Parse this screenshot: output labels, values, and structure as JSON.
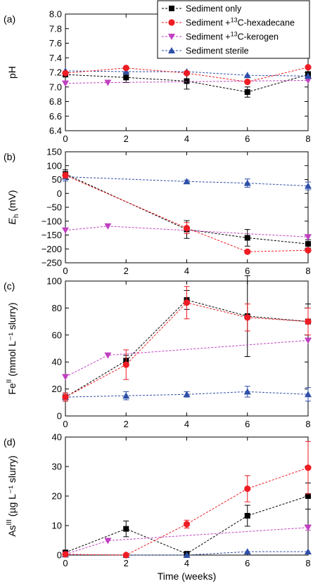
{
  "legend": {
    "entries": [
      {
        "pre": "Sediment only",
        "sup": "",
        "post": "",
        "series": "sediment_only"
      },
      {
        "pre": "Sediment +",
        "sup": "13",
        "post": "C-hexadecane",
        "series": "hexadecane"
      },
      {
        "pre": "Sediment +",
        "sup": "13",
        "post": "C-kerogen",
        "series": "kerogen"
      },
      {
        "pre": "Sediment sterile",
        "sup": "",
        "post": "",
        "series": "sterile"
      }
    ],
    "placement": "top-right"
  },
  "styles": {
    "sediment_only": {
      "color": "#000000",
      "marker": "square"
    },
    "hexadecane": {
      "color": "#ee1c24",
      "marker": "circle"
    },
    "kerogen": {
      "color": "#c040c0",
      "marker": "triangle-down"
    },
    "sterile": {
      "color": "#2e4fa8",
      "marker": "triangle-up"
    }
  },
  "xlabel": "Time (weeks)",
  "chart_data": [
    {
      "type": "line",
      "panel": "(a)",
      "ylabel": {
        "main": "pH",
        "sub": "",
        "sup": "",
        "rest": ""
      },
      "xlim": [
        0,
        8
      ],
      "ylim": [
        6.4,
        8.0
      ],
      "xticks": [
        "0",
        "2",
        "4",
        "6",
        "8"
      ],
      "yticks": [
        "6.4",
        "6.6",
        "6.8",
        "7.0",
        "7.2",
        "7.4",
        "7.6",
        "7.8",
        "8.0"
      ],
      "series": [
        {
          "key": "sediment_only",
          "x": [
            0,
            2,
            4,
            6,
            8
          ],
          "y": [
            7.17,
            7.13,
            7.08,
            6.93,
            7.17
          ],
          "err": [
            0.03,
            0.07,
            0.11,
            0.07,
            0.04
          ]
        },
        {
          "key": "hexadecane",
          "x": [
            0,
            2,
            4,
            6,
            8
          ],
          "y": [
            7.19,
            7.26,
            7.19,
            7.07,
            7.27
          ],
          "err": [
            0,
            0,
            0,
            0,
            0
          ]
        },
        {
          "key": "kerogen",
          "x": [
            0,
            1.4,
            8
          ],
          "y": [
            7.05,
            7.06,
            7.09
          ],
          "err": [
            0,
            0,
            0
          ]
        },
        {
          "key": "sterile",
          "x": [
            0,
            2,
            4,
            6,
            8
          ],
          "y": [
            7.22,
            7.21,
            7.21,
            7.16,
            7.15
          ],
          "err": [
            0,
            0,
            0,
            0,
            0
          ]
        }
      ]
    },
    {
      "type": "line",
      "panel": "(b)",
      "ylabel": {
        "main": "E",
        "sub": "h",
        "sup": "",
        "rest": " (mV)"
      },
      "xlim": [
        0,
        8
      ],
      "ylim": [
        -250,
        150
      ],
      "xticks": [
        "0",
        "2",
        "4",
        "6",
        "8"
      ],
      "yticks": [
        "−250",
        "−200",
        "−150",
        "−100",
        "−50",
        "0",
        "50",
        "100",
        "150"
      ],
      "series": [
        {
          "key": "sediment_only",
          "x": [
            0,
            4,
            6,
            8
          ],
          "y": [
            70,
            -130,
            -160,
            -182
          ],
          "err": [
            15,
            32,
            30,
            15
          ]
        },
        {
          "key": "hexadecane",
          "x": [
            0,
            4,
            6,
            8
          ],
          "y": [
            65,
            -125,
            -210,
            -205
          ],
          "err": [
            10,
            20,
            5,
            5
          ]
        },
        {
          "key": "kerogen",
          "x": [
            0,
            1.4,
            8
          ],
          "y": [
            -133,
            -118,
            -157
          ],
          "err": [
            0,
            0,
            0
          ]
        },
        {
          "key": "sterile",
          "x": [
            0,
            4,
            6,
            8
          ],
          "y": [
            60,
            43,
            37,
            27
          ],
          "err": [
            15,
            5,
            15,
            14
          ]
        }
      ]
    },
    {
      "type": "line",
      "panel": "(c)",
      "ylabel": {
        "main": "Fe",
        "sub": "",
        "sup": "II",
        "rest": " (mmol L⁻¹ slurry)"
      },
      "xlim": [
        0,
        8
      ],
      "ylim": [
        0,
        100
      ],
      "xticks": [
        "0",
        "2",
        "4",
        "6",
        "8"
      ],
      "yticks": [
        "0",
        "20",
        "40",
        "60",
        "80",
        "100"
      ],
      "series": [
        {
          "key": "sediment_only",
          "x": [
            0,
            2,
            4,
            6,
            8
          ],
          "y": [
            14,
            41,
            86,
            74,
            70
          ],
          "err": [
            3,
            4,
            7,
            30,
            13
          ]
        },
        {
          "key": "hexadecane",
          "x": [
            0,
            2,
            4,
            6,
            8
          ],
          "y": [
            14,
            38,
            84,
            73,
            70
          ],
          "err": [
            3,
            11,
            12,
            10,
            10
          ]
        },
        {
          "key": "kerogen",
          "x": [
            0,
            1.4,
            8
          ],
          "y": [
            29,
            45,
            56
          ],
          "err": [
            0,
            0,
            0
          ]
        },
        {
          "key": "sterile",
          "x": [
            0,
            2,
            4,
            6,
            8
          ],
          "y": [
            14,
            15,
            16,
            18,
            16
          ],
          "err": [
            2,
            3,
            2,
            4,
            5
          ]
        }
      ]
    },
    {
      "type": "line",
      "panel": "(d)",
      "ylabel": {
        "main": "As",
        "sub": "",
        "sup": "III",
        "rest": " (µg L⁻¹ slurry)"
      },
      "xlim": [
        0,
        8
      ],
      "ylim": [
        0,
        45
      ],
      "xticks": [
        "0",
        "2",
        "4",
        "6",
        "8"
      ],
      "yticks": [
        "0",
        "10",
        "20",
        "30",
        "40"
      ],
      "series": [
        {
          "key": "sediment_only",
          "x": [
            0,
            2,
            4,
            6,
            8
          ],
          "y": [
            1,
            10,
            0.5,
            15,
            22.5
          ],
          "err": [
            0.5,
            3,
            0,
            4,
            5
          ]
        },
        {
          "key": "hexadecane",
          "x": [
            0,
            2,
            4,
            6,
            8
          ],
          "y": [
            0.3,
            0,
            11.8,
            25.3,
            33.3
          ],
          "err": [
            0,
            0,
            1.5,
            5,
            10
          ]
        },
        {
          "key": "kerogen",
          "x": [
            0,
            1.4,
            8
          ],
          "y": [
            0.3,
            5.5,
            10.5
          ],
          "err": [
            0,
            0,
            1
          ]
        },
        {
          "key": "sterile",
          "x": [
            0,
            2,
            4,
            6,
            8
          ],
          "y": [
            0.2,
            0,
            0,
            1.3,
            1.3
          ],
          "err": [
            0,
            0,
            0,
            0,
            0
          ]
        }
      ]
    }
  ]
}
